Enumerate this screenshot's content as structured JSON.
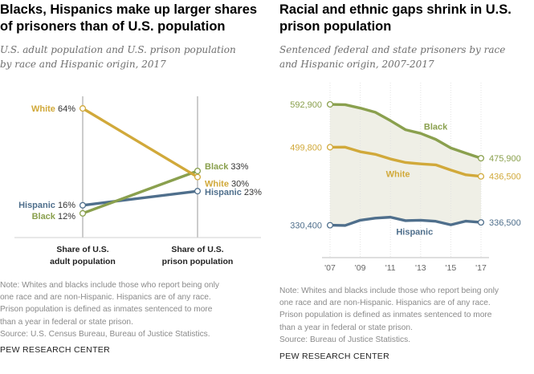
{
  "left": {
    "title_lines": [
      "Blacks, Hispanics make up larger shares",
      "of prisoners than of U.S. population"
    ],
    "subtitle_lines": [
      "U.S. adult population and U.S. prison population",
      "by race and Hispanic origin, 2017"
    ],
    "note_lines": [
      "Note: Whites and blacks include those who report being only",
      "one race and are non-Hispanic. Hispanics are of any race.",
      "Prison population is defined as inmates sentenced to more",
      "than a year in federal or state prison.",
      "Source: U.S. Census Bureau, Bureau of Justice Statistics."
    ],
    "org": "PEW RESEARCH CENTER"
  },
  "right": {
    "title_lines": [
      "Racial and ethnic gaps shrink in U.S.",
      "prison population"
    ],
    "subtitle_lines": [
      "Sentenced federal and state prisoners by race",
      "and Hispanic origin, 2007-2017"
    ],
    "note_lines": [
      "Note: Whites and blacks include those who report being only",
      "one race and are non-Hispanic. Hispanics are of any race.",
      "Prison population is defined as inmates sentenced to more",
      "than a year in federal or state prison.",
      "Source: Bureau of Justice Statistics."
    ],
    "org": "PEW RESEARCH CENTER"
  },
  "colors": {
    "white": "#d1a93a",
    "black": "#8aa04e",
    "hispanic": "#4f6f8c",
    "axis": "#9a9a9a",
    "band": "#efefe6"
  },
  "chart_data": [
    {
      "type": "line",
      "categories": [
        "Share of U.S. adult population",
        "Share of U.S. prison population"
      ],
      "category_label_lines": [
        [
          "Share of U.S.",
          "adult population"
        ],
        [
          "Share of U.S.",
          "prison population"
        ]
      ],
      "unit": "%",
      "ylim": [
        0,
        70
      ],
      "series": [
        {
          "key": "white",
          "name": "White",
          "values": [
            64,
            30
          ],
          "start_label": "64%",
          "end_label": "30%"
        },
        {
          "key": "black",
          "name": "Black",
          "values": [
            12,
            33
          ],
          "start_label": "12%",
          "end_label": "33%"
        },
        {
          "key": "hispanic",
          "name": "Hispanic",
          "values": [
            16,
            23
          ],
          "start_label": "16%",
          "end_label": "23%"
        }
      ]
    },
    {
      "type": "line",
      "x": [
        2007,
        2008,
        2009,
        2010,
        2011,
        2012,
        2013,
        2014,
        2015,
        2016,
        2017
      ],
      "xtick_values": [
        2007,
        2009,
        2011,
        2013,
        2015,
        2017
      ],
      "xtick_labels": [
        "'07",
        "'09",
        "'11",
        "'13",
        "'15",
        "'17"
      ],
      "ylim": [
        260000,
        640000
      ],
      "series": [
        {
          "key": "black",
          "name": "Black",
          "values": [
            592900,
            592200,
            584800,
            575700,
            557600,
            537800,
            529900,
            516900,
            498200,
            486900,
            475900
          ],
          "start_label": "592,900",
          "end_label": "475,900"
        },
        {
          "key": "white",
          "name": "White",
          "values": [
            499800,
            499900,
            490000,
            484400,
            474300,
            466600,
            463700,
            461500,
            450200,
            439800,
            436500
          ],
          "start_label": "499,800",
          "end_label": "436,500"
        },
        {
          "key": "hispanic",
          "name": "Hispanic",
          "values": [
            330400,
            329800,
            341200,
            345800,
            347800,
            340300,
            341200,
            338900,
            331200,
            339300,
            336500
          ],
          "start_label": "330,400",
          "end_label": "336,500"
        }
      ]
    }
  ]
}
